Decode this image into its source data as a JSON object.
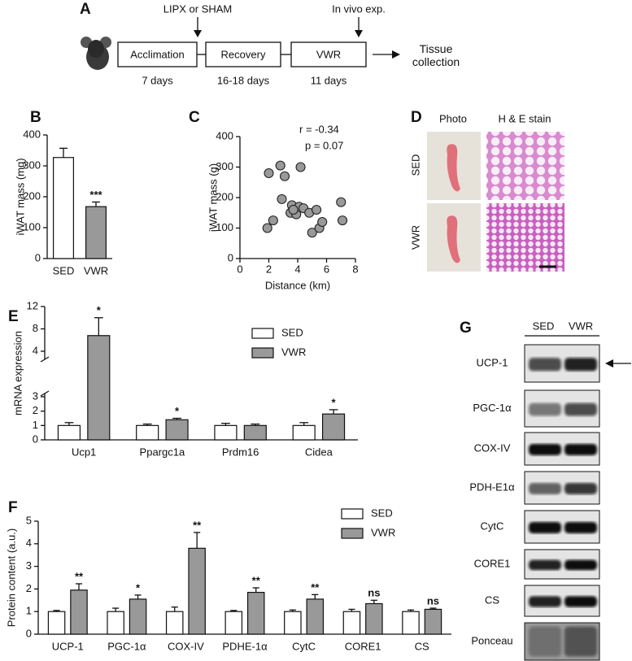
{
  "panel_labels": [
    "A",
    "B",
    "C",
    "D",
    "E",
    "F",
    "G"
  ],
  "protocol": {
    "events": [
      "LIPX or SHAM",
      "In vivo exp."
    ],
    "phases": [
      {
        "name": "Acclimation",
        "duration": "7 days"
      },
      {
        "name": "Recovery",
        "duration": "16-18 days"
      },
      {
        "name": "VWR",
        "duration": "11 days"
      }
    ],
    "outcome": "Tissue collection"
  },
  "histology": {
    "columns": [
      "Photo",
      "H & E stain"
    ],
    "rows": [
      "SED",
      "VWR"
    ]
  },
  "western_blot": {
    "lanes": [
      "SED",
      "VWR"
    ],
    "rows": [
      "UCP-1",
      "PGC-1α",
      "COX-IV",
      "PDH-E1α",
      "CytC",
      "CORE1",
      "CS",
      "Ponceau"
    ]
  },
  "chart_data": [
    {
      "type": "bar",
      "categories": [
        "SED",
        "VWR"
      ],
      "values": [
        327,
        168
      ],
      "errors": [
        30,
        15
      ],
      "colors": [
        "#ffffff",
        "#999999"
      ],
      "significance": [
        null,
        "***"
      ],
      "ylabel": "iWAT mass (mg)",
      "ylim": [
        0,
        400
      ],
      "yticks": [
        0,
        100,
        200,
        300,
        400
      ],
      "grid": false
    },
    {
      "type": "scatter",
      "x": [
        1.9,
        2.3,
        2.0,
        2.8,
        3.1,
        2.9,
        3.6,
        3.5,
        3.9,
        4.2,
        4.1,
        4.4,
        4.8,
        5.0,
        5.3,
        5.5,
        5.7,
        7.0,
        7.1,
        3.7
      ],
      "y": [
        100,
        125,
        280,
        305,
        270,
        195,
        175,
        150,
        145,
        300,
        170,
        165,
        150,
        85,
        160,
        100,
        120,
        185,
        125,
        160
      ],
      "color": "#999999",
      "annotations": [
        "r =  -0.34",
        "p = 0.07"
      ],
      "xlabel": "Distance (km)",
      "ylabel": "iWAT mass (g)",
      "xlim": [
        0,
        8
      ],
      "xticks": [
        0,
        2,
        4,
        6,
        8
      ],
      "ylim": [
        0,
        400
      ],
      "yticks": [
        0,
        100,
        200,
        300,
        400
      ],
      "grid": false
    },
    {
      "type": "grouped_bar",
      "categories": [
        "Ucp1",
        "Ppargc1a",
        "Prdm16",
        "Cidea"
      ],
      "series": [
        {
          "name": "SED",
          "color": "#ffffff",
          "values": [
            1,
            1,
            1,
            1
          ],
          "errors": [
            0.2,
            0.1,
            0.15,
            0.2
          ]
        },
        {
          "name": "VWR",
          "color": "#999999",
          "values": [
            6.8,
            1.4,
            1.0,
            1.8
          ],
          "errors": [
            3.2,
            0.1,
            0.1,
            0.3
          ],
          "significance": [
            "*",
            "*",
            null,
            "*"
          ]
        }
      ],
      "ylabel": "mRNA expression",
      "ylim": [
        0,
        12
      ],
      "ybreak": [
        3,
        4
      ],
      "yticks": [
        0,
        1,
        2,
        3,
        4,
        8,
        12
      ],
      "legend": "top-right",
      "grid": false
    },
    {
      "type": "grouped_bar",
      "categories": [
        "UCP-1",
        "PGC-1α",
        "COX-IV",
        "PDHE-1α",
        "CytC",
        "CORE1",
        "CS"
      ],
      "series": [
        {
          "name": "SED",
          "color": "#ffffff",
          "values": [
            1,
            1,
            1,
            1,
            1,
            1,
            1
          ],
          "errors": [
            0.05,
            0.15,
            0.2,
            0.05,
            0.07,
            0.1,
            0.07
          ]
        },
        {
          "name": "VWR",
          "color": "#999999",
          "values": [
            1.95,
            1.55,
            3.8,
            1.85,
            1.55,
            1.35,
            1.1
          ],
          "errors": [
            0.28,
            0.18,
            0.7,
            0.2,
            0.2,
            0.15,
            0.05
          ],
          "significance": [
            "**",
            "*",
            "**",
            "**",
            "**",
            "ns",
            "ns"
          ]
        }
      ],
      "ylabel": "Protein content (a.u.)",
      "ylim": [
        0,
        5
      ],
      "yticks": [
        0,
        1,
        2,
        3,
        4,
        5
      ],
      "legend": "top-right",
      "grid": false
    }
  ]
}
